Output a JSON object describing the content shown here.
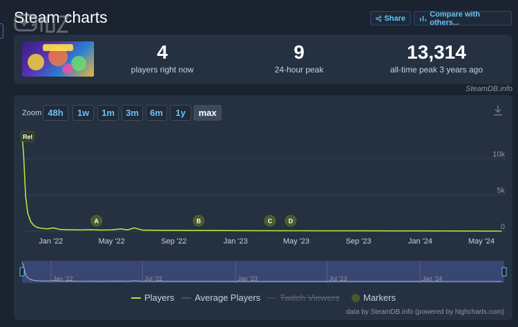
{
  "page": {
    "title": "Steam charts",
    "share_label": "Share",
    "compare_label": "Compare with others..."
  },
  "stats": [
    {
      "value": "4",
      "label": "players right now"
    },
    {
      "value": "9",
      "label": "24-hour peak"
    },
    {
      "value": "13,314",
      "label": "all-time peak 3 years ago"
    }
  ],
  "steamdb_credit": "SteamDB.info",
  "zoom": {
    "label": "Zoom",
    "options": [
      "48h",
      "1w",
      "1m",
      "3m",
      "6m",
      "1y",
      "max"
    ],
    "active": "max"
  },
  "colors": {
    "players_line": "#b4e837",
    "accent": "#67c1f5",
    "marker": "#4a5a2a"
  },
  "chart_data": {
    "type": "line",
    "y_ticks": [
      "0",
      "5k",
      "10k"
    ],
    "ylim": [
      0,
      13314
    ],
    "x_ticks": [
      "Jan '22",
      "May '22",
      "Sep '22",
      "Jan '23",
      "May '23",
      "Sep '23",
      "Jan '24",
      "May '24"
    ],
    "navigator_ticks": [
      "Jan '22",
      "Jul '22",
      "Jan '23",
      "Jul '23",
      "Jan '24"
    ],
    "series": [
      {
        "name": "Players",
        "x": [
          "2021-11-05",
          "2021-11-08",
          "2021-11-12",
          "2021-11-16",
          "2021-11-22",
          "2021-11-28",
          "2021-12-05",
          "2021-12-15",
          "2021-12-25",
          "2022-01-05",
          "2022-01-20",
          "2022-02-10",
          "2022-03-01",
          "2022-03-20",
          "2022-04-10",
          "2022-05-01",
          "2022-05-20",
          "2022-06-01",
          "2022-06-15",
          "2022-07-01",
          "2022-08-01",
          "2022-09-01",
          "2022-10-01",
          "2022-11-01",
          "2022-12-01",
          "2023-01-01",
          "2023-03-01",
          "2023-05-01",
          "2023-07-01",
          "2023-09-01",
          "2023-11-01",
          "2024-01-01",
          "2024-03-01",
          "2024-05-01",
          "2024-06-10"
        ],
        "values": [
          13314,
          10500,
          4800,
          2500,
          1300,
          800,
          500,
          380,
          300,
          450,
          220,
          180,
          160,
          200,
          150,
          170,
          300,
          160,
          450,
          130,
          110,
          100,
          90,
          85,
          80,
          70,
          60,
          50,
          40,
          35,
          30,
          25,
          15,
          10,
          4
        ]
      }
    ],
    "markers": [
      {
        "label": "Rel",
        "x": "2021-11-05"
      },
      {
        "label": "A",
        "x": "2022-04-01"
      },
      {
        "label": "B",
        "x": "2022-10-20"
      },
      {
        "label": "C",
        "x": "2023-03-10"
      },
      {
        "label": "D",
        "x": "2023-04-20"
      }
    ],
    "legend": [
      {
        "name": "Players",
        "visible": true
      },
      {
        "name": "Average Players",
        "visible": true
      },
      {
        "name": "Twitch Viewers",
        "visible": false
      },
      {
        "name": "Markers",
        "visible": true
      }
    ]
  },
  "chart_credit": "data by SteamDB.info (powered by highcharts.com)"
}
